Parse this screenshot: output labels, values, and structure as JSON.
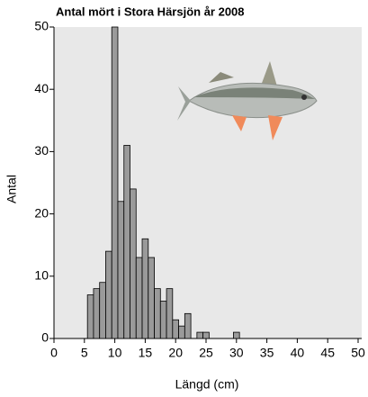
{
  "chart_data": {
    "type": "histogram",
    "title": "Antal mört i Stora Härsjön år 2008",
    "x_label": "Längd (cm)",
    "y_label": "Antal",
    "bins": [
      5.5,
      6.5,
      7.5,
      8.5,
      9.5,
      10.5,
      11.5,
      12.5,
      13.5,
      14.5,
      15.5,
      16.5,
      17.5,
      18.5,
      19.5,
      20.5,
      21.5,
      22.5,
      23.5,
      24.5,
      25.5,
      26.5,
      27.5,
      28.5,
      29.5,
      30.5
    ],
    "values": [
      7,
      8,
      9,
      14,
      50,
      22,
      31,
      24,
      13,
      16,
      13,
      8,
      6,
      8,
      3,
      2,
      4,
      0,
      1,
      1,
      0,
      0,
      0,
      0,
      1
    ],
    "color": "#9a9a9a",
    "xlim": [
      0,
      50
    ],
    "xticks": [
      0,
      5,
      10,
      15,
      20,
      25,
      30,
      35,
      40,
      45,
      50
    ],
    "ylim": [
      0,
      50
    ],
    "yticks": [
      0,
      10,
      20,
      30,
      40,
      50
    ]
  }
}
